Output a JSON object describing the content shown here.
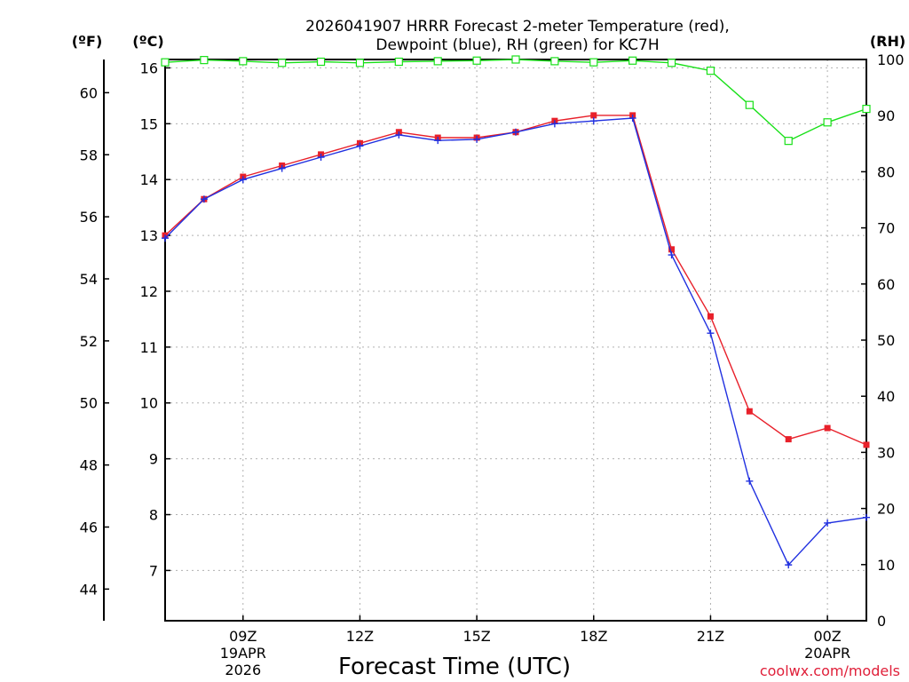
{
  "chart_data": {
    "type": "line",
    "title_line1": "2026041907 HRRR Forecast 2-meter Temperature (red),",
    "title_line2": "Dewpoint (blue), RH (green) for KC7H",
    "xlabel": "Forecast Time (UTC)",
    "credit": "coolwx.com/models",
    "unit_f": "(ºF)",
    "unit_c": "(ºC)",
    "unit_rh": "(RH)",
    "x_hours": [
      7,
      8,
      9,
      10,
      11,
      12,
      13,
      14,
      15,
      16,
      17,
      18,
      19,
      20,
      21,
      22,
      23,
      24,
      25
    ],
    "xlim": [
      7,
      25
    ],
    "ylim_c": [
      6.1,
      16.15
    ],
    "ylim_rh": [
      0,
      100
    ],
    "x_ticks": [
      {
        "hour": 9,
        "label": "09Z",
        "sub1": "19APR",
        "sub2": "2026"
      },
      {
        "hour": 12,
        "label": "12Z",
        "sub1": "",
        "sub2": ""
      },
      {
        "hour": 15,
        "label": "15Z",
        "sub1": "",
        "sub2": ""
      },
      {
        "hour": 18,
        "label": "18Z",
        "sub1": "",
        "sub2": ""
      },
      {
        "hour": 21,
        "label": "21Z",
        "sub1": "",
        "sub2": ""
      },
      {
        "hour": 24,
        "label": "00Z",
        "sub1": "20APR",
        "sub2": ""
      }
    ],
    "c_ticks": [
      7,
      8,
      9,
      10,
      11,
      12,
      13,
      14,
      15,
      16
    ],
    "f_ticks": [
      44,
      46,
      48,
      50,
      52,
      54,
      56,
      58,
      60
    ],
    "rh_ticks": [
      0,
      10,
      20,
      30,
      40,
      50,
      60,
      70,
      80,
      90,
      100
    ],
    "series": [
      {
        "name": "Temperature",
        "color": "#e8202a",
        "values": [
          13.0,
          13.65,
          14.05,
          14.25,
          14.45,
          14.65,
          14.85,
          14.75,
          14.75,
          14.85,
          15.05,
          15.15,
          15.15,
          12.75,
          11.55,
          9.85,
          9.35,
          9.55,
          9.25
        ]
      },
      {
        "name": "Dewpoint",
        "color": "#2030e0",
        "values": [
          12.95,
          13.65,
          14.0,
          14.2,
          14.4,
          14.6,
          14.8,
          14.7,
          14.72,
          14.85,
          15.0,
          15.05,
          15.1,
          12.65,
          11.25,
          8.6,
          7.1,
          7.85,
          7.95
        ]
      },
      {
        "name": "RH",
        "color": "#18e018",
        "values": [
          99.5,
          99.9,
          99.7,
          99.4,
          99.6,
          99.4,
          99.6,
          99.7,
          99.8,
          100.0,
          99.7,
          99.5,
          99.8,
          99.4,
          98.0,
          91.9,
          85.5,
          88.8,
          91.2
        ]
      }
    ]
  }
}
